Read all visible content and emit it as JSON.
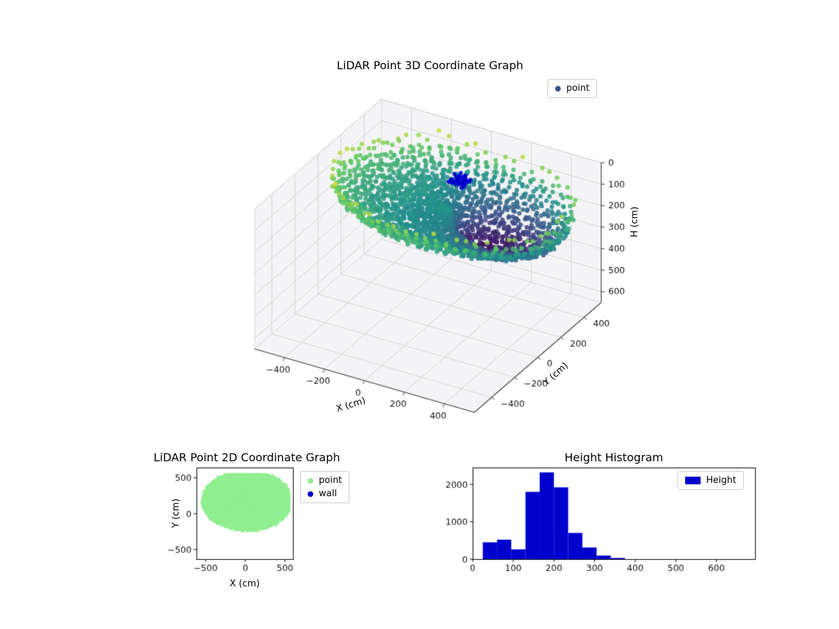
{
  "figure": {
    "background": "#ffffff"
  },
  "chart_data": [
    {
      "type": "scatter3d",
      "title": "LiDAR Point 3D Coordinate Graph",
      "xlabel": "X (cm)",
      "ylabel": "Y (cm)",
      "zlabel": "H (cm)",
      "xticks": [
        -400,
        -200,
        0,
        200,
        400
      ],
      "yticks": [
        -400,
        -200,
        0,
        200,
        400
      ],
      "zticks": [
        0,
        100,
        200,
        300,
        400,
        500,
        600
      ],
      "xlim": [
        -550,
        550
      ],
      "ylim": [
        -550,
        550
      ],
      "zlim": [
        0,
        650
      ],
      "zaxis_inverted": true,
      "view": {
        "elev": 30,
        "azim": -60
      },
      "grid": true,
      "pane_color": "#f4f4f6",
      "grid_color": "#cfcfcf",
      "legend": {
        "position": "upper right",
        "entries": [
          {
            "label": "point",
            "color": "#3b528b"
          }
        ]
      },
      "series": [
        {
          "name": "point",
          "kind": "dome_point_cloud",
          "colormap": "viridis reversed by height",
          "center": {
            "x": 20,
            "y": 180
          },
          "radius_x": 560,
          "radius_y": 420,
          "h_rim": 60,
          "h_peak": 330,
          "n_rays": 72,
          "n_radial": 34,
          "noise": 14,
          "seed": 7
        },
        {
          "name": "wall",
          "kind": "cluster",
          "color": "#0000cd",
          "x_range": [
            0,
            70
          ],
          "y_range": [
            180,
            250
          ],
          "h_range": [
            45,
            85
          ],
          "count": 45,
          "seed": 3
        }
      ]
    },
    {
      "type": "scatter",
      "title": "LiDAR Point 2D Coordinate Graph",
      "xlabel": "X (cm)",
      "ylabel": "Y (cm)",
      "xticks": [
        -500,
        0,
        500
      ],
      "yticks": [
        -500,
        0,
        500
      ],
      "xlim": [
        -615,
        600
      ],
      "ylim": [
        -635,
        645
      ],
      "legend": {
        "position": "right of axes",
        "entries": [
          {
            "label": "point",
            "color": "#90ee90"
          },
          {
            "label": "wall",
            "color": "#0000cd"
          }
        ]
      }
    },
    {
      "type": "histogram",
      "title": "Height Histogram",
      "bar_color": "#0000cd",
      "legend": {
        "position": "upper right",
        "entries": [
          {
            "label": "Height",
            "color": "#0000cd"
          }
        ]
      },
      "bin_edges": [
        25,
        60,
        95,
        130,
        165,
        200,
        235,
        270,
        305,
        340,
        375
      ],
      "counts": [
        450,
        520,
        260,
        1800,
        2320,
        1920,
        700,
        310,
        95,
        30
      ],
      "xticks": [
        0,
        100,
        200,
        300,
        400,
        500,
        600
      ],
      "yticks": [
        0,
        1000,
        2000
      ],
      "xlim": [
        0,
        695
      ],
      "ylim": [
        0,
        2450
      ]
    }
  ]
}
